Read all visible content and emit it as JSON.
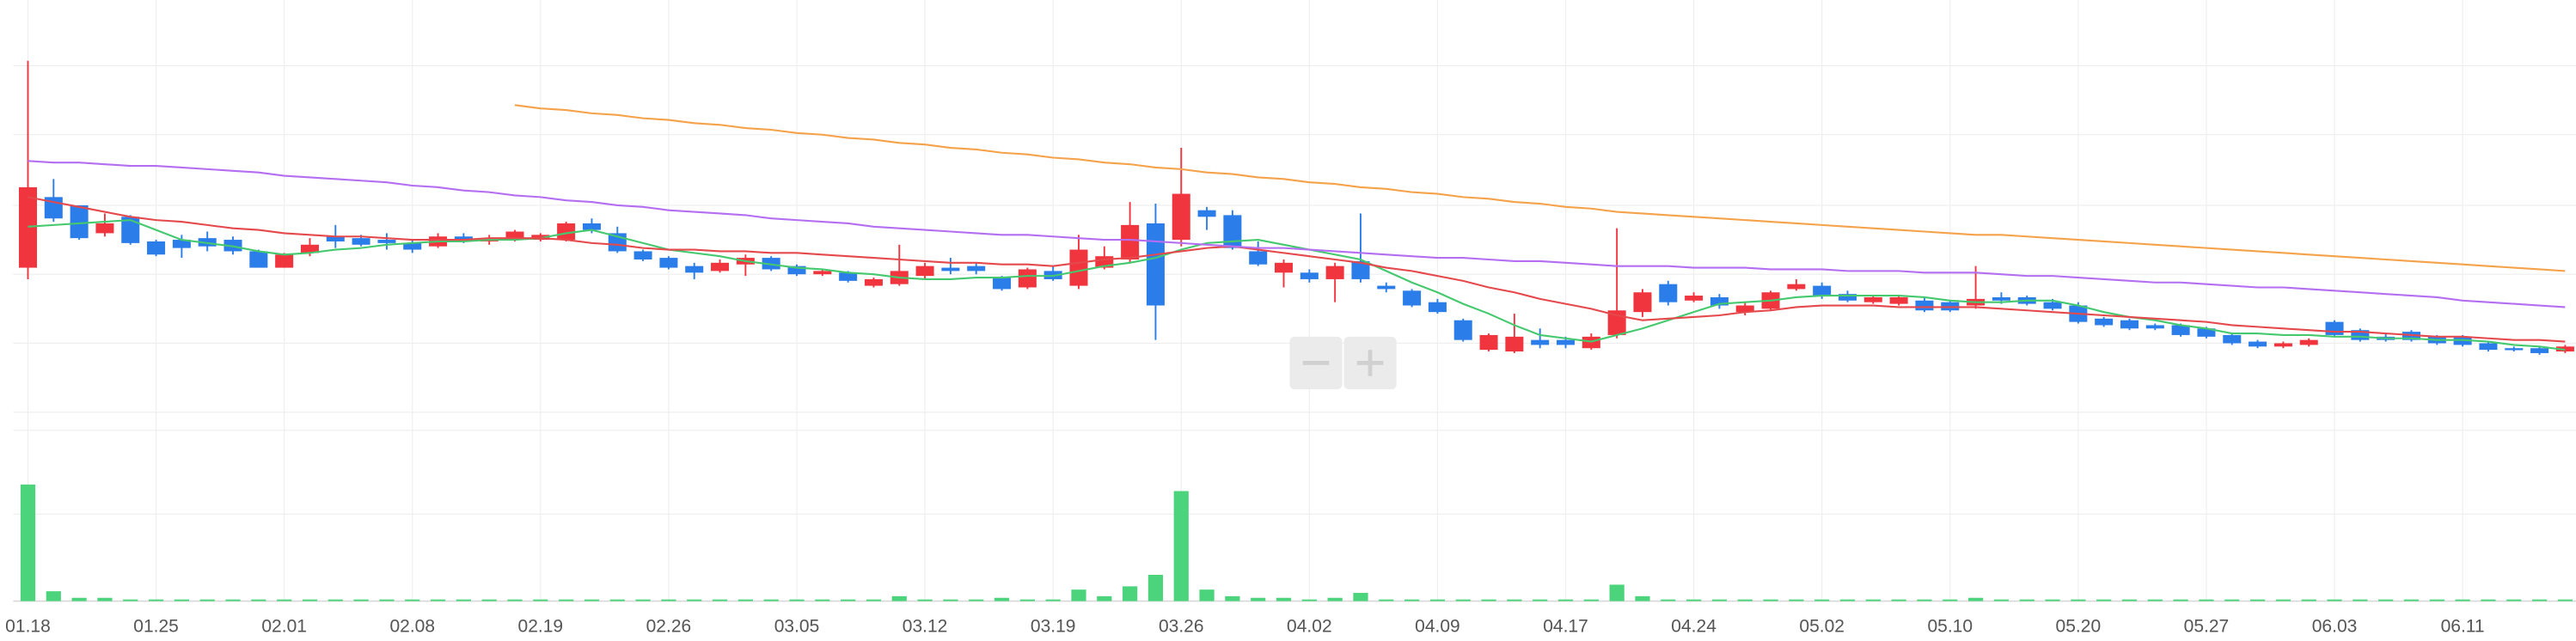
{
  "chart_data": {
    "type": "candlestick",
    "categories": [
      "01.18",
      null,
      null,
      null,
      null,
      "01.25",
      null,
      null,
      null,
      null,
      "02.01",
      null,
      null,
      null,
      null,
      "02.08",
      null,
      null,
      null,
      null,
      "02.19",
      null,
      null,
      null,
      null,
      "02.26",
      null,
      null,
      null,
      null,
      "03.05",
      null,
      null,
      null,
      null,
      "03.12",
      null,
      null,
      null,
      null,
      "03.19",
      null,
      null,
      null,
      null,
      "03.26",
      null,
      null,
      null,
      null,
      "04.02",
      null,
      null,
      null,
      null,
      "04.09",
      null,
      null,
      null,
      null,
      "04.17",
      null,
      null,
      null,
      null,
      "04.24",
      null,
      null,
      null,
      null,
      "05.02",
      null,
      null,
      null,
      null,
      "05.10",
      null,
      null,
      null,
      null,
      "05.20",
      null,
      null,
      null,
      null,
      "05.27",
      null,
      null,
      null,
      null,
      "06.03",
      null,
      null,
      null,
      null,
      "06.11",
      null,
      null,
      null,
      null
    ],
    "open": [
      87,
      130,
      125,
      108,
      118,
      103,
      104,
      105,
      104,
      97,
      87,
      96,
      106,
      105,
      104,
      102,
      100,
      106,
      103,
      104,
      104,
      104,
      114,
      108,
      97,
      93,
      88,
      85,
      89,
      93,
      88,
      83,
      84,
      76,
      77,
      82,
      87,
      88,
      81,
      75,
      85,
      76,
      87,
      92,
      114,
      104,
      122,
      119,
      97,
      84,
      84,
      80,
      91,
      76,
      73,
      66,
      55,
      37,
      36,
      43,
      43,
      38,
      46,
      60,
      77,
      67,
      69,
      60,
      62,
      74,
      76,
      71,
      66,
      65,
      67,
      66,
      64,
      69,
      69,
      66,
      64,
      56,
      55,
      52,
      52,
      50,
      46,
      42,
      39,
      40,
      54,
      49,
      45,
      48,
      45,
      45,
      41,
      38,
      38,
      36
    ],
    "high": [
      213,
      141,
      125,
      120,
      119,
      104,
      107,
      109,
      106,
      98,
      96,
      105,
      113,
      107,
      108,
      104,
      108,
      108,
      107,
      110,
      108,
      115,
      117,
      112,
      98,
      94,
      90,
      92,
      95,
      94,
      89,
      86,
      85,
      81,
      101,
      90,
      93,
      90,
      82,
      87,
      88,
      107,
      100,
      127,
      126,
      160,
      124,
      122,
      103,
      92,
      86,
      90,
      120,
      78,
      74,
      68,
      56,
      47,
      59,
      50,
      45,
      47,
      111,
      74,
      79,
      72,
      71,
      66,
      73,
      80,
      78,
      73,
      70,
      70,
      69,
      67,
      88,
      72,
      70,
      68,
      66,
      57,
      56,
      53,
      53,
      51,
      47,
      43,
      42,
      44,
      55,
      50,
      47,
      49,
      46,
      46,
      42,
      39,
      39,
      40
    ],
    "low": [
      80,
      115,
      104,
      106,
      101,
      94,
      93,
      97,
      95,
      87,
      87,
      94,
      99,
      100,
      98,
      96,
      99,
      102,
      101,
      103,
      103,
      103,
      108,
      96,
      91,
      86,
      80,
      84,
      82,
      85,
      82,
      82,
      78,
      75,
      76,
      80,
      83,
      83,
      73,
      74,
      79,
      74,
      86,
      90,
      43,
      100,
      110,
      98,
      88,
      75,
      78,
      66,
      78,
      72,
      63,
      59,
      42,
      36,
      35,
      38,
      38,
      37,
      44,
      57,
      64,
      66,
      62,
      58,
      61,
      73,
      68,
      66,
      65,
      64,
      60,
      60,
      62,
      65,
      64,
      61,
      53,
      51,
      49,
      49,
      45,
      44,
      40,
      38,
      38,
      39,
      45,
      42,
      42,
      42,
      40,
      39,
      36,
      36,
      34,
      35
    ],
    "close": [
      136,
      117,
      105,
      114,
      102,
      95,
      99,
      100,
      97,
      87,
      95,
      101,
      103,
      101,
      102,
      98,
      106,
      103,
      105,
      109,
      107,
      114,
      110,
      97,
      92,
      87,
      84,
      90,
      93,
      86,
      83,
      85,
      79,
      80,
      85,
      88,
      85,
      85,
      74,
      86,
      80,
      98,
      94,
      113,
      64,
      132,
      118,
      99,
      89,
      90,
      80,
      88,
      80,
      74,
      64,
      60,
      43,
      46,
      45,
      40,
      40,
      45,
      61,
      72,
      66,
      70,
      64,
      64,
      72,
      77,
      70,
      67,
      69,
      69,
      61,
      61,
      68,
      67,
      65,
      62,
      54,
      52,
      50,
      50,
      46,
      45,
      41,
      39,
      41,
      43,
      46,
      43,
      43,
      43,
      41,
      40,
      37,
      37,
      35,
      39
    ],
    "up_color": "#f0353f",
    "down_color": "#2b7de9",
    "ylim": [
      0,
      250
    ],
    "lines": [
      {
        "color": "#45c96e",
        "values": [
          112,
          113,
          114,
          115,
          116,
          110,
          104,
          102,
          100,
          97,
          95,
          96,
          98,
          99,
          101,
          102,
          103,
          103,
          104,
          104,
          105,
          108,
          110,
          106,
          102,
          98,
          96,
          94,
          91,
          89,
          87,
          86,
          84,
          83,
          81,
          80,
          80,
          81,
          81,
          82,
          82,
          85,
          88,
          90,
          93,
          98,
          102,
          103,
          104,
          101,
          98,
          95,
          92,
          85,
          78,
          72,
          65,
          59,
          52,
          46,
          44,
          42,
          46,
          50,
          55,
          60,
          65,
          66,
          67,
          69,
          70,
          70,
          70,
          70,
          69,
          67,
          66,
          66,
          67,
          67,
          64,
          60,
          57,
          55,
          52,
          50,
          47,
          47,
          46,
          46,
          45,
          45,
          44,
          44,
          43,
          43,
          42,
          40,
          39,
          37
        ]
      },
      {
        "color": "#e5494c",
        "values": [
          130,
          127,
          124,
          121,
          118,
          116,
          115,
          113,
          111,
          110,
          108,
          107,
          106,
          106,
          105,
          104,
          104,
          104,
          105,
          105,
          105,
          104,
          102,
          101,
          99,
          98,
          98,
          97,
          97,
          96,
          96,
          95,
          94,
          93,
          92,
          91,
          90,
          90,
          89,
          89,
          88,
          90,
          92,
          93,
          95,
          97,
          99,
          100,
          98,
          96,
          94,
          92,
          90,
          87,
          85,
          82,
          79,
          75,
          72,
          68,
          65,
          62,
          58,
          55,
          56,
          57,
          58,
          60,
          61,
          63,
          64,
          64,
          64,
          63,
          63,
          63,
          63,
          62,
          61,
          60,
          59,
          58,
          57,
          56,
          55,
          54,
          52,
          51,
          50,
          49,
          48,
          48,
          47,
          46,
          45,
          45,
          44,
          43,
          43,
          42
        ]
      },
      {
        "color": "#b46ef2",
        "values": [
          152,
          151,
          151,
          150,
          149,
          149,
          148,
          147,
          146,
          145,
          143,
          142,
          141,
          140,
          139,
          137,
          136,
          134,
          133,
          131,
          130,
          128,
          127,
          125,
          124,
          122,
          121,
          120,
          119,
          117,
          116,
          115,
          114,
          112,
          111,
          110,
          109,
          108,
          107,
          107,
          106,
          105,
          104,
          104,
          103,
          102,
          101,
          100,
          99,
          99,
          98,
          97,
          96,
          95,
          94,
          93,
          93,
          92,
          91,
          91,
          90,
          89,
          88,
          88,
          88,
          87,
          87,
          87,
          86,
          86,
          86,
          85,
          85,
          85,
          84,
          84,
          84,
          83,
          82,
          82,
          81,
          80,
          79,
          78,
          78,
          77,
          76,
          75,
          75,
          74,
          73,
          72,
          71,
          70,
          69,
          67,
          66,
          65,
          64,
          63
        ]
      },
      {
        "color": "#f5a24a",
        "values": [
          null,
          null,
          null,
          null,
          null,
          null,
          null,
          null,
          null,
          null,
          null,
          null,
          null,
          null,
          null,
          null,
          null,
          null,
          null,
          186,
          184,
          183,
          181,
          180,
          178,
          177,
          175,
          174,
          172,
          171,
          169,
          168,
          166,
          165,
          163,
          162,
          160,
          159,
          157,
          156,
          154,
          153,
          151,
          150,
          148,
          147,
          145,
          144,
          142,
          141,
          139,
          138,
          136,
          135,
          133,
          132,
          130,
          129,
          127,
          126,
          124,
          123,
          121,
          120,
          119,
          118,
          117,
          116,
          115,
          114,
          113,
          112,
          111,
          110,
          109,
          108,
          107,
          107,
          106,
          105,
          104,
          103,
          102,
          101,
          100,
          99,
          98,
          97,
          96,
          95,
          94,
          93,
          92,
          91,
          90,
          89,
          88,
          87,
          86,
          85
        ]
      }
    ],
    "volume": {
      "color": "#4cd47c",
      "ylim": [
        0,
        75
      ],
      "values": [
        71,
        6,
        2,
        2,
        1,
        1,
        1,
        1,
        1,
        1,
        1,
        1,
        1,
        1,
        1,
        1,
        1,
        1,
        1,
        1,
        1,
        1,
        1,
        1,
        1,
        1,
        1,
        1,
        1,
        1,
        1,
        1,
        1,
        1,
        3,
        1,
        1,
        1,
        2,
        1,
        1,
        7,
        3,
        9,
        16,
        67,
        7,
        3,
        2,
        2,
        1,
        2,
        5,
        1,
        1,
        1,
        1,
        1,
        1,
        1,
        1,
        1,
        10,
        3,
        1,
        1,
        1,
        1,
        1,
        1,
        1,
        1,
        1,
        1,
        1,
        1,
        2,
        1,
        1,
        1,
        1,
        1,
        1,
        1,
        1,
        1,
        1,
        1,
        1,
        1,
        1,
        1,
        1,
        1,
        1,
        1,
        1,
        1,
        1,
        1
      ]
    },
    "grid": true
  }
}
